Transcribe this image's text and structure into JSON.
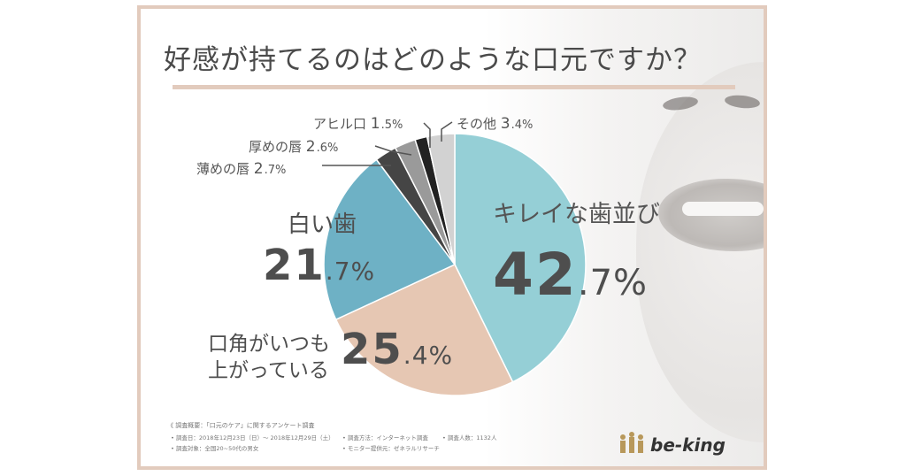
{
  "title": "好感が持てるのはどのような口元ですか？",
  "chart_data": {
    "type": "pie",
    "title": "好感が持てるのはどのような口元ですか？",
    "slices": [
      {
        "label": "キレイな歯並び",
        "value": 42.7,
        "int": "42",
        "dec": ".7%",
        "color": "#95cfd6"
      },
      {
        "label": "口角がいつも上がっている",
        "label_lines": [
          "口角がいつも",
          "上がっている"
        ],
        "value": 25.4,
        "int": "25",
        "dec": ".4%",
        "color": "#e6c7b3"
      },
      {
        "label": "白い歯",
        "value": 21.7,
        "int": "21",
        "dec": ".7%",
        "color": "#6eb1c5"
      },
      {
        "label": "薄めの唇",
        "value": 2.7,
        "int": "2",
        "dec": ".7%",
        "color": "#454545"
      },
      {
        "label": "厚めの唇",
        "value": 2.6,
        "int": "2",
        "dec": ".6%",
        "color": "#9a9a9a"
      },
      {
        "label": "アヒル口",
        "value": 1.5,
        "int": "1",
        "dec": ".5%",
        "color": "#222222"
      },
      {
        "label": "その他",
        "value": 3.4,
        "int": "3",
        "dec": ".4%",
        "color": "#d2d2d2"
      }
    ]
  },
  "footer": {
    "header": "《 調査概要：「口元のケア」に関するアンケート調査",
    "items": [
      "• 調査日：2018年12月23日（日）～ 2018年12月29日（土）",
      "• 調査方法：インターネット調査",
      "• 調査人数：1132人",
      "• 調査対象：全国20~50代の男女",
      "• モニター提供元：ゼネラルリサーチ"
    ]
  },
  "logo": {
    "text": "be-king",
    "color": "#b8985a"
  }
}
